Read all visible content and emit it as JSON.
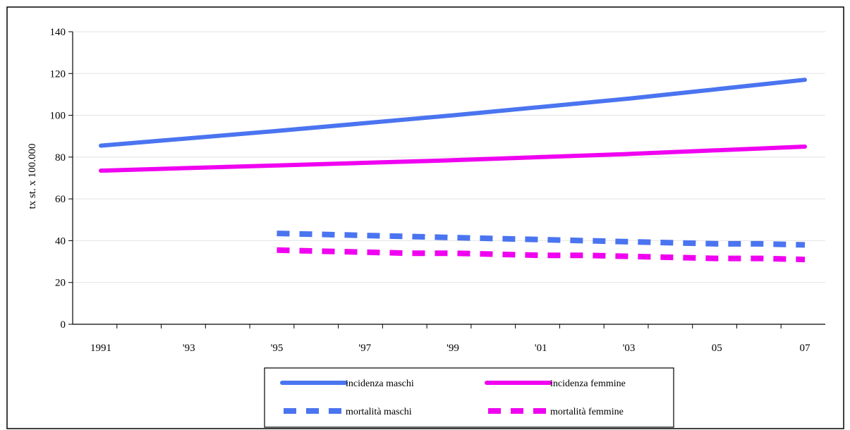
{
  "chart_data": {
    "type": "line",
    "ylabel": "tx st. x 100.000",
    "xlabel": "",
    "title": "",
    "x": [
      1991,
      1992,
      1993,
      1994,
      1995,
      1996,
      1997,
      1998,
      1999,
      2000,
      2001,
      2002,
      2003,
      2004,
      2005,
      2006,
      2007
    ],
    "x_tick_labels": [
      "1991",
      "'93",
      "'95",
      "'97",
      "'99",
      "'01",
      "'03",
      "05",
      "07"
    ],
    "y_ticks": [
      0,
      20,
      40,
      60,
      80,
      100,
      120,
      140
    ],
    "ylim": [
      0,
      140
    ],
    "xlim": [
      1991,
      2007
    ],
    "grid": "horizontal",
    "legend_placement": "bottom",
    "series": [
      {
        "name": "incidenza maschi",
        "style": "solid",
        "color": "#4a74f0",
        "x": [
          1991,
          1995,
          1999,
          2003,
          2007
        ],
        "values": [
          85.5,
          92.5,
          100,
          108,
          117
        ]
      },
      {
        "name": "incidenza femmine",
        "style": "solid",
        "color": "#f000f0",
        "x": [
          1991,
          1995,
          1999,
          2003,
          2007
        ],
        "values": [
          73.5,
          76,
          78.5,
          81.5,
          85
        ]
      },
      {
        "name": "mortalità maschi",
        "style": "dashed",
        "color": "#4a74f0",
        "x": [
          1995,
          1996,
          1997,
          1998,
          1999,
          2000,
          2001,
          2002,
          2003,
          2004,
          2005,
          2006,
          2007
        ],
        "values": [
          43.5,
          43,
          42.5,
          42,
          41.5,
          41,
          40.5,
          40,
          39.5,
          39,
          38.5,
          38.5,
          38
        ]
      },
      {
        "name": "mortalità femmine",
        "style": "dashed",
        "color": "#f000f0",
        "x": [
          1995,
          1996,
          1997,
          1998,
          1999,
          2000,
          2001,
          2002,
          2003,
          2004,
          2005,
          2006,
          2007
        ],
        "values": [
          35.5,
          35,
          34.5,
          34,
          34,
          33.5,
          33,
          33,
          32.5,
          32,
          31.5,
          31.5,
          31
        ]
      }
    ]
  }
}
